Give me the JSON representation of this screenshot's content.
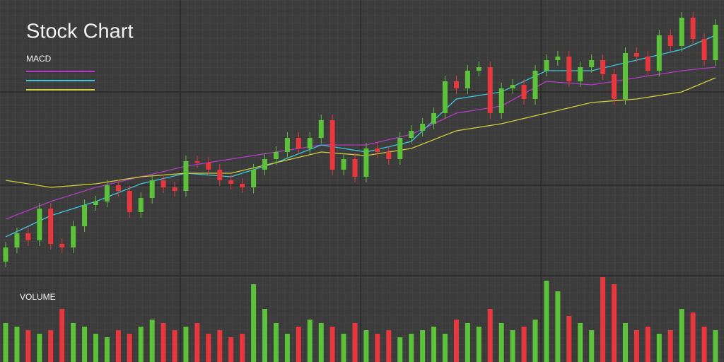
{
  "chart_data": [
    {
      "type": "candlestick",
      "title": "Stock Chart",
      "legend_title": "MACD",
      "ylim": [
        0,
        400
      ],
      "up_color": "#5cc23a",
      "down_color": "#e8383d",
      "open": [
        40,
        60,
        80,
        70,
        115,
        65,
        60,
        90,
        120,
        125,
        148,
        140,
        110,
        130,
        155,
        145,
        140,
        182,
        180,
        170,
        155,
        150,
        145,
        170,
        185,
        195,
        215,
        200,
        215,
        240,
        170,
        185,
        160,
        200,
        195,
        185,
        215,
        225,
        235,
        250,
        295,
        285,
        310,
        315,
        250,
        285,
        290,
        270,
        310,
        325,
        330,
        295,
        315,
        325,
        305,
        270,
        335,
        330,
        310,
        360,
        345,
        385,
        355,
        325
      ],
      "high": [
        68,
        88,
        88,
        123,
        123,
        73,
        98,
        128,
        133,
        156,
        156,
        148,
        138,
        163,
        163,
        153,
        190,
        190,
        188,
        178,
        163,
        158,
        178,
        193,
        203,
        223,
        223,
        223,
        248,
        248,
        193,
        193,
        208,
        208,
        203,
        223,
        233,
        243,
        258,
        303,
        303,
        318,
        323,
        323,
        293,
        298,
        298,
        318,
        333,
        338,
        338,
        323,
        333,
        333,
        313,
        343,
        343,
        338,
        368,
        368,
        393,
        393,
        363,
        383
      ],
      "low": [
        32,
        52,
        62,
        62,
        57,
        52,
        52,
        82,
        112,
        117,
        132,
        102,
        102,
        122,
        137,
        132,
        132,
        172,
        162,
        147,
        142,
        137,
        137,
        162,
        177,
        187,
        192,
        192,
        207,
        162,
        162,
        152,
        152,
        187,
        177,
        177,
        207,
        217,
        227,
        242,
        277,
        277,
        302,
        242,
        242,
        277,
        262,
        262,
        302,
        317,
        287,
        287,
        307,
        297,
        262,
        262,
        322,
        302,
        302,
        337,
        337,
        347,
        317,
        317
      ],
      "close": [
        60,
        80,
        70,
        115,
        65,
        60,
        90,
        120,
        125,
        148,
        140,
        110,
        130,
        155,
        145,
        140,
        182,
        180,
        170,
        155,
        150,
        145,
        170,
        185,
        195,
        215,
        200,
        215,
        240,
        170,
        185,
        160,
        200,
        195,
        185,
        215,
        225,
        235,
        250,
        295,
        285,
        310,
        315,
        250,
        285,
        290,
        270,
        310,
        325,
        330,
        295,
        315,
        325,
        305,
        270,
        335,
        330,
        310,
        360,
        345,
        385,
        355,
        325,
        375
      ],
      "series": [
        {
          "color": "#b43cc4",
          "x": [
            0,
            4,
            8,
            12,
            16,
            20,
            24,
            28,
            32,
            36,
            40,
            44,
            48,
            52,
            56,
            60,
            63
          ],
          "values": [
            100,
            125,
            145,
            160,
            175,
            185,
            195,
            205,
            205,
            220,
            250,
            260,
            295,
            290,
            300,
            310,
            315
          ]
        },
        {
          "color": "#3ec9dc",
          "x": [
            0,
            4,
            8,
            12,
            16,
            20,
            24,
            28,
            32,
            36,
            40,
            44,
            48,
            52,
            56,
            60,
            63
          ],
          "values": [
            75,
            105,
            125,
            150,
            165,
            160,
            180,
            205,
            195,
            210,
            270,
            280,
            310,
            310,
            325,
            340,
            360
          ]
        },
        {
          "color": "#d2cf3c",
          "x": [
            0,
            4,
            8,
            12,
            16,
            20,
            24,
            28,
            32,
            36,
            40,
            44,
            48,
            52,
            56,
            60,
            63
          ],
          "values": [
            155,
            145,
            150,
            160,
            165,
            165,
            180,
            195,
            190,
            200,
            225,
            235,
            250,
            265,
            270,
            280,
            300
          ]
        }
      ]
    },
    {
      "type": "bar",
      "title": "VOLUME",
      "ylim": [
        0,
        120
      ],
      "values": [
        55,
        50,
        45,
        40,
        45,
        75,
        55,
        50,
        40,
        35,
        45,
        40,
        50,
        60,
        55,
        45,
        50,
        55,
        40,
        45,
        35,
        40,
        110,
        75,
        55,
        40,
        50,
        60,
        55,
        50,
        40,
        55,
        45,
        40,
        45,
        35,
        40,
        45,
        50,
        40,
        60,
        55,
        50,
        75,
        55,
        45,
        50,
        60,
        115,
        100,
        65,
        55,
        45,
        120,
        110,
        55,
        45,
        50,
        40,
        45,
        75,
        70,
        50,
        45
      ]
    }
  ]
}
